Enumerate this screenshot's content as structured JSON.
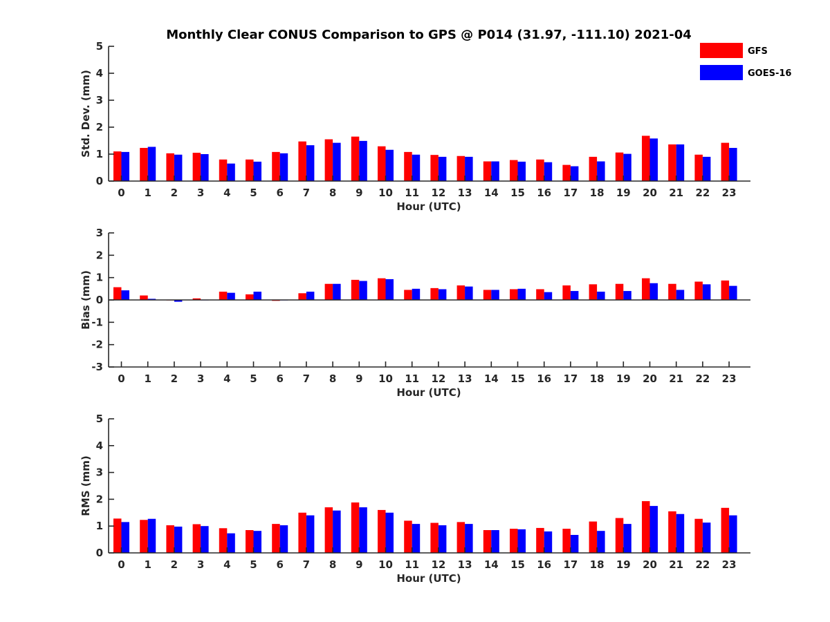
{
  "title": "Monthly Clear CONUS Comparison to GPS @ P014 (31.97, -111.10) 2021-04",
  "chart_data": [
    {
      "type": "bar",
      "xlabel": "Hour (UTC)",
      "ylabel": "Std. Dev. (mm)",
      "ylim": [
        0,
        5
      ],
      "yticks": [
        0,
        1,
        2,
        3,
        4,
        5
      ],
      "categories": [
        "0",
        "1",
        "2",
        "3",
        "4",
        "5",
        "6",
        "7",
        "8",
        "9",
        "10",
        "11",
        "12",
        "13",
        "14",
        "15",
        "16",
        "17",
        "18",
        "19",
        "20",
        "21",
        "22",
        "23"
      ],
      "series": [
        {
          "name": "GFS",
          "color": "#ff0000",
          "values": [
            1.1,
            1.23,
            1.03,
            1.05,
            0.8,
            0.8,
            1.08,
            1.47,
            1.55,
            1.65,
            1.29,
            1.08,
            0.97,
            0.93,
            0.73,
            0.78,
            0.8,
            0.6,
            0.9,
            1.06,
            1.68,
            1.36,
            0.98,
            1.42
          ]
        },
        {
          "name": "GOES-16",
          "color": "#0000ff",
          "values": [
            1.08,
            1.27,
            0.98,
            1.0,
            0.65,
            0.72,
            1.03,
            1.33,
            1.42,
            1.49,
            1.16,
            0.98,
            0.9,
            0.9,
            0.73,
            0.72,
            0.7,
            0.55,
            0.73,
            1.01,
            1.58,
            1.36,
            0.9,
            1.23
          ]
        }
      ]
    },
    {
      "type": "bar",
      "xlabel": "Hour (UTC)",
      "ylabel": "Bias (mm)",
      "ylim": [
        -3,
        3
      ],
      "yticks": [
        -3,
        -2,
        -1,
        0,
        1,
        2,
        3
      ],
      "categories": [
        "0",
        "1",
        "2",
        "3",
        "4",
        "5",
        "6",
        "7",
        "8",
        "9",
        "10",
        "11",
        "12",
        "13",
        "14",
        "15",
        "16",
        "17",
        "18",
        "19",
        "20",
        "21",
        "22",
        "23"
      ],
      "series": [
        {
          "name": "GFS",
          "color": "#ff0000",
          "values": [
            0.57,
            0.2,
            -0.02,
            0.07,
            0.37,
            0.25,
            -0.04,
            0.3,
            0.72,
            0.9,
            0.97,
            0.45,
            0.53,
            0.65,
            0.45,
            0.48,
            0.48,
            0.65,
            0.7,
            0.72,
            0.97,
            0.72,
            0.82,
            0.87
          ]
        },
        {
          "name": "GOES-16",
          "color": "#0000ff",
          "values": [
            0.43,
            0.05,
            -0.08,
            0.0,
            0.32,
            0.37,
            -0.02,
            0.37,
            0.72,
            0.85,
            0.93,
            0.5,
            0.48,
            0.6,
            0.45,
            0.5,
            0.35,
            0.4,
            0.37,
            0.4,
            0.75,
            0.45,
            0.7,
            0.63
          ]
        }
      ]
    },
    {
      "type": "bar",
      "xlabel": "Hour (UTC)",
      "ylabel": "RMS (mm)",
      "ylim": [
        0,
        5
      ],
      "yticks": [
        0,
        1,
        2,
        3,
        4,
        5
      ],
      "categories": [
        "0",
        "1",
        "2",
        "3",
        "4",
        "5",
        "6",
        "7",
        "8",
        "9",
        "10",
        "11",
        "12",
        "13",
        "14",
        "15",
        "16",
        "17",
        "18",
        "19",
        "20",
        "21",
        "22",
        "23"
      ],
      "series": [
        {
          "name": "GFS",
          "color": "#ff0000",
          "values": [
            1.28,
            1.23,
            1.03,
            1.07,
            0.92,
            0.85,
            1.08,
            1.5,
            1.7,
            1.88,
            1.6,
            1.2,
            1.12,
            1.15,
            0.85,
            0.9,
            0.93,
            0.9,
            1.17,
            1.3,
            1.93,
            1.55,
            1.27,
            1.68
          ]
        },
        {
          "name": "GOES-16",
          "color": "#0000ff",
          "values": [
            1.15,
            1.27,
            0.98,
            1.0,
            0.73,
            0.82,
            1.03,
            1.4,
            1.58,
            1.7,
            1.5,
            1.08,
            1.03,
            1.08,
            0.85,
            0.88,
            0.8,
            0.67,
            0.82,
            1.08,
            1.75,
            1.45,
            1.13,
            1.4
          ]
        }
      ]
    }
  ],
  "legend": [
    {
      "name": "GFS",
      "color": "#ff0000"
    },
    {
      "name": "GOES-16",
      "color": "#0000ff"
    }
  ]
}
